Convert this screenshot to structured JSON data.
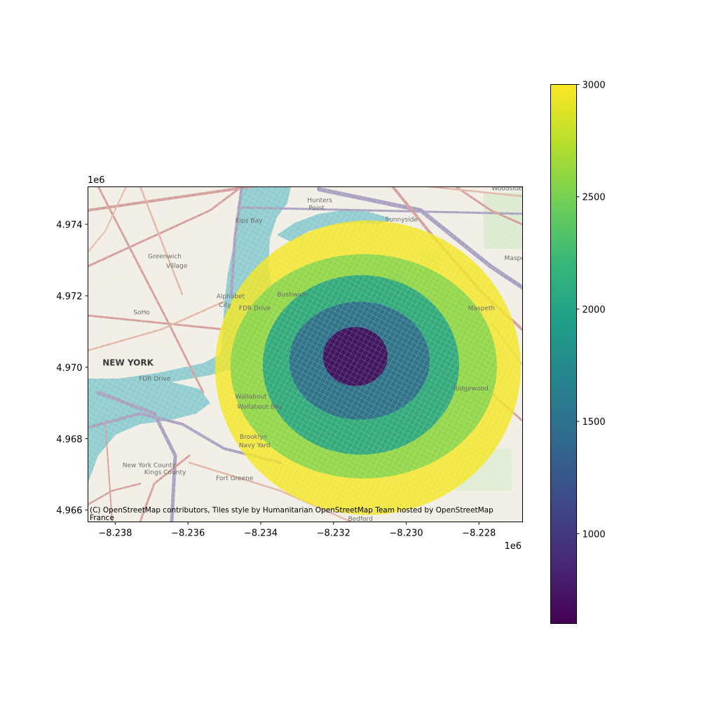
{
  "chart_data": {
    "type": "heatmap",
    "subtype": "isochrone-map-over-tiles",
    "x_axis": {
      "ticks": [
        -8.238,
        -8.236,
        -8.234,
        -8.232,
        -8.23,
        -8.228
      ],
      "tick_labels": [
        "−8.238",
        "−8.236",
        "−8.234",
        "−8.232",
        "−8.230",
        "−8.228"
      ],
      "offset_label": "1e6",
      "range": [
        -8.23875,
        -8.2268
      ]
    },
    "y_axis": {
      "ticks": [
        4.966,
        4.968,
        4.97,
        4.972,
        4.974
      ],
      "tick_labels": [
        "4.966",
        "4.968",
        "4.970",
        "4.972",
        "4.974"
      ],
      "offset_label": "1e6",
      "range": [
        4.96567,
        4.97505
      ]
    },
    "center": {
      "x": -8.2314,
      "y": 4.9703
    },
    "bands": [
      {
        "value": 3000,
        "color": "#f3e51f"
      },
      {
        "value": 2500,
        "color": "#7fd34e"
      },
      {
        "value": 2000,
        "color": "#1fa188"
      },
      {
        "value": 1500,
        "color": "#31688e"
      },
      {
        "value": 600,
        "color": "#440154"
      }
    ],
    "colorbar": {
      "min": 600,
      "max": 3000,
      "colormap": "viridis",
      "ticks": [
        1000,
        1500,
        2000,
        2500,
        3000
      ],
      "tick_labels": [
        "1000",
        "1500",
        "2000",
        "2500",
        "3000"
      ],
      "colors": [
        "#440154",
        "#482878",
        "#3e4989",
        "#31688e",
        "#26828e",
        "#1f9e89",
        "#35b779",
        "#6ece58",
        "#b5de2b",
        "#fde725"
      ]
    },
    "basemap_labels": [
      {
        "text": "NEW YORK",
        "x": -8.23835,
        "y": 4.97005,
        "style": "big"
      },
      {
        "text": "Greenwich",
        "x": -8.2371,
        "y": 4.97305
      },
      {
        "text": "Village",
        "x": -8.2366,
        "y": 4.97278
      },
      {
        "text": "SoHo",
        "x": -8.2375,
        "y": 4.97148
      },
      {
        "text": "Alphabet",
        "x": -8.23522,
        "y": 4.97193
      },
      {
        "text": "City",
        "x": -8.23515,
        "y": 4.97168
      },
      {
        "text": "Kips Bay",
        "x": -8.2347,
        "y": 4.97405
      },
      {
        "text": "Hunters",
        "x": -8.23272,
        "y": 4.97462
      },
      {
        "text": "Point",
        "x": -8.23268,
        "y": 4.9744
      },
      {
        "text": "Sunnyside",
        "x": -8.23058,
        "y": 4.97408
      },
      {
        "text": "Woodside",
        "x": -8.22765,
        "y": 4.97495
      },
      {
        "text": "Maspeth",
        "x": -8.2273,
        "y": 4.973
      },
      {
        "text": "Maspeth",
        "x": -8.2283,
        "y": 4.9716
      },
      {
        "text": "Bushwick",
        "x": -8.23355,
        "y": 4.97198
      },
      {
        "text": "Wallabout",
        "x": -8.2347,
        "y": 4.96912
      },
      {
        "text": "Wallabout Bay",
        "x": -8.23465,
        "y": 4.96884
      },
      {
        "text": "Brooklyn",
        "x": -8.23458,
        "y": 4.968
      },
      {
        "text": "Navy Yard",
        "x": -8.2346,
        "y": 4.96776
      },
      {
        "text": "Fort Greene",
        "x": -8.23523,
        "y": 4.96684
      },
      {
        "text": "Ridgewood",
        "x": -8.2287,
        "y": 4.96935
      },
      {
        "text": "FDR Drive",
        "x": -8.23735,
        "y": 4.96962
      },
      {
        "text": "FDR Drive",
        "x": -8.2346,
        "y": 4.9716
      },
      {
        "text": "New York County",
        "x": -8.2378,
        "y": 4.9672
      },
      {
        "text": "Kings County",
        "x": -8.2372,
        "y": 4.967
      },
      {
        "text": "Bedford",
        "x": -8.2316,
        "y": 4.9657
      }
    ],
    "attribution": [
      "(C) OpenStreetMap contributors, Tiles style by Humanitarian OpenStreetMap Team hosted by OpenStreetMap",
      "France"
    ]
  }
}
